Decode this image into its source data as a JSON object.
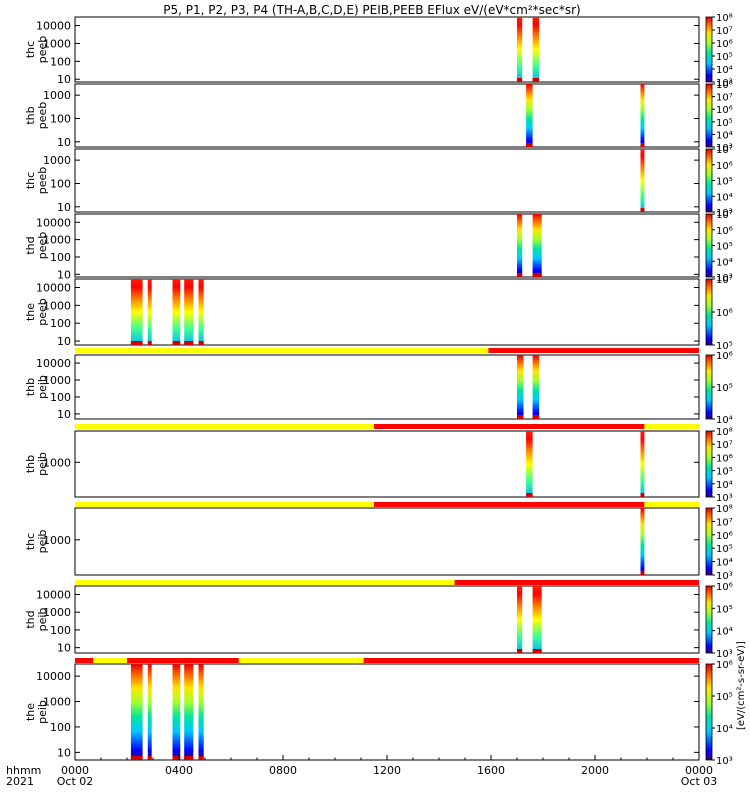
{
  "chart_data": {
    "type": "heatmap",
    "title": "P5, P1, P2, P3, P4 (TH-A,B,C,D,E) PEIB,PEEB EFlux eV/(eV*cm²*sec*sr)",
    "time_axis": {
      "row_label_1": "hhmm",
      "row_label_2": "2021",
      "range_hours": [
        0,
        24
      ],
      "ticks": [
        {
          "hour": 0,
          "label": "0000",
          "date": "Oct 02"
        },
        {
          "hour": 4,
          "label": "0400",
          "date": ""
        },
        {
          "hour": 8,
          "label": "0800",
          "date": ""
        },
        {
          "hour": 12,
          "label": "1200",
          "date": ""
        },
        {
          "hour": 16,
          "label": "1600",
          "date": ""
        },
        {
          "hour": 20,
          "label": "2000",
          "date": ""
        },
        {
          "hour": 24,
          "label": "0000",
          "date": "Oct 03"
        }
      ]
    },
    "colorbar_label": "[eV/(cm²-s-sr-eV)]",
    "colors": {
      "mode_yellow": "#ffff00",
      "mode_red": "#ff0000"
    },
    "panels": [
      {
        "probe": "thc",
        "product": "peeb",
        "ylim": [
          7,
          30000
        ],
        "yticks": [
          "10",
          "100",
          "1000",
          "10000"
        ],
        "cbar": {
          "exp_min": 3,
          "exp_max": 8,
          "ticks": [
            "10³",
            "10⁴",
            "10⁵",
            "10⁶",
            "10⁷",
            "10⁸"
          ]
        },
        "mode_bar": [],
        "bursts": [
          {
            "start": 17.0,
            "end": 17.2,
            "ylow": 7,
            "yhigh": 30000
          },
          {
            "start": 17.6,
            "end": 17.85,
            "ylow": 7,
            "yhigh": 30000
          }
        ]
      },
      {
        "probe": "thb",
        "product": "peeb",
        "ylim": [
          6,
          3000
        ],
        "yticks": [
          "10",
          "100",
          "1000"
        ],
        "cbar": {
          "exp_min": 3,
          "exp_max": 8,
          "ticks": [
            "10³",
            "10⁴",
            "10⁵",
            "10⁶",
            "10⁷",
            "10⁸"
          ]
        },
        "mode_bar": [],
        "bursts": [
          {
            "start": 17.35,
            "end": 17.6,
            "ylow": 6,
            "yhigh": 3000
          },
          {
            "start": 21.75,
            "end": 21.9,
            "ylow": 6,
            "yhigh": 3000
          }
        ]
      },
      {
        "probe": "thc",
        "product": "peeb",
        "ylim": [
          6,
          3000
        ],
        "yticks": [
          "10",
          "100",
          "1000"
        ],
        "cbar": {
          "exp_min": 3,
          "exp_max": 7,
          "ticks": [
            "10³",
            "10⁴",
            "10⁵",
            "10⁶",
            "10⁷"
          ]
        },
        "mode_bar": [],
        "bursts": [
          {
            "start": 21.75,
            "end": 21.9,
            "ylow": 6,
            "yhigh": 3000
          }
        ]
      },
      {
        "probe": "thd",
        "product": "peeb",
        "ylim": [
          7,
          30000
        ],
        "yticks": [
          "10",
          "100",
          "1000",
          "10000"
        ],
        "cbar": {
          "exp_min": 3,
          "exp_max": 7,
          "ticks": [
            "10³",
            "10⁴",
            "10⁵",
            "10⁶",
            "10⁷"
          ]
        },
        "mode_bar": [],
        "bursts": [
          {
            "start": 17.0,
            "end": 17.2,
            "ylow": 7,
            "yhigh": 30000
          },
          {
            "start": 17.6,
            "end": 17.95,
            "ylow": 7,
            "yhigh": 30000
          }
        ]
      },
      {
        "probe": "the",
        "product": "peeb",
        "ylim": [
          6,
          30000
        ],
        "yticks": [
          "10",
          "100",
          "1000",
          "10000"
        ],
        "cbar": {
          "exp_min": 5,
          "exp_max": 7,
          "ticks": [
            "10⁵",
            "10⁶",
            "10⁷"
          ]
        },
        "mode_bar": [],
        "bursts": [
          {
            "start": 2.15,
            "end": 2.6,
            "ylow": 6,
            "yhigh": 30000
          },
          {
            "start": 2.8,
            "end": 2.95,
            "ylow": 6,
            "yhigh": 30000
          },
          {
            "start": 3.75,
            "end": 4.05,
            "ylow": 6,
            "yhigh": 30000
          },
          {
            "start": 4.2,
            "end": 4.55,
            "ylow": 6,
            "yhigh": 30000
          },
          {
            "start": 4.75,
            "end": 4.95,
            "ylow": 6,
            "yhigh": 30000
          }
        ]
      },
      {
        "probe": "thb",
        "product": "peib",
        "ylim": [
          5,
          30000
        ],
        "yticks": [
          "10",
          "100",
          "1000",
          "10000"
        ],
        "cbar": {
          "exp_min": 4,
          "exp_max": 6,
          "ticks": [
            "10⁴",
            "10⁵",
            "10⁶"
          ]
        },
        "mode_bar": [
          {
            "start": 0,
            "end": 15.9,
            "mode": "yellow"
          },
          {
            "start": 15.9,
            "end": 24,
            "mode": "red"
          }
        ],
        "bursts": [
          {
            "start": 17.0,
            "end": 17.25,
            "ylow": 5,
            "yhigh": 30000
          },
          {
            "start": 17.6,
            "end": 17.85,
            "ylow": 5,
            "yhigh": 30000
          }
        ]
      },
      {
        "probe": "thb",
        "product": "peib",
        "ylim": [
          100,
          8000
        ],
        "yticks": [
          "1000"
        ],
        "cbar": {
          "exp_min": 3,
          "exp_max": 8,
          "ticks": [
            "10³",
            "10⁴",
            "10⁵",
            "10⁶",
            "10⁷",
            "10⁸"
          ]
        },
        "mode_bar": [
          {
            "start": 0,
            "end": 11.5,
            "mode": "yellow"
          },
          {
            "start": 11.5,
            "end": 21.9,
            "mode": "red"
          },
          {
            "start": 21.9,
            "end": 24,
            "mode": "yellow"
          }
        ],
        "bursts": [
          {
            "start": 17.35,
            "end": 17.6,
            "ylow": 100,
            "yhigh": 8000
          },
          {
            "start": 21.75,
            "end": 21.9,
            "ylow": 100,
            "yhigh": 8000
          }
        ]
      },
      {
        "probe": "thc",
        "product": "peib",
        "ylim": [
          100,
          8000
        ],
        "yticks": [
          "1000"
        ],
        "cbar": {
          "exp_min": 3,
          "exp_max": 8,
          "ticks": [
            "10³",
            "10⁴",
            "10⁵",
            "10⁶",
            "10⁷",
            "10⁸"
          ]
        },
        "mode_bar": [
          {
            "start": 0,
            "end": 11.5,
            "mode": "yellow"
          },
          {
            "start": 11.5,
            "end": 21.9,
            "mode": "red"
          },
          {
            "start": 21.9,
            "end": 24,
            "mode": "yellow"
          }
        ],
        "bursts": [
          {
            "start": 21.75,
            "end": 21.9,
            "ylow": 100,
            "yhigh": 8000
          }
        ]
      },
      {
        "probe": "thd",
        "product": "peib",
        "ylim": [
          5,
          30000
        ],
        "yticks": [
          "10",
          "100",
          "1000",
          "10000"
        ],
        "cbar": {
          "exp_min": 3,
          "exp_max": 6,
          "ticks": [
            "10³",
            "10⁴",
            "10⁵",
            "10⁶"
          ]
        },
        "mode_bar": [
          {
            "start": 0,
            "end": 14.6,
            "mode": "yellow"
          },
          {
            "start": 14.6,
            "end": 24,
            "mode": "red"
          }
        ],
        "bursts": [
          {
            "start": 17.0,
            "end": 17.2,
            "ylow": 5,
            "yhigh": 30000
          },
          {
            "start": 17.6,
            "end": 17.95,
            "ylow": 5,
            "yhigh": 30000
          }
        ]
      },
      {
        "probe": "the",
        "product": "peib",
        "ylim": [
          5,
          30000
        ],
        "yticks": [
          "10",
          "100",
          "1000",
          "10000"
        ],
        "cbar": {
          "exp_min": 3,
          "exp_max": 6,
          "ticks": [
            "10³",
            "10⁴",
            "10⁵",
            "10⁶"
          ]
        },
        "mode_bar": [
          {
            "start": 0,
            "end": 0.7,
            "mode": "red"
          },
          {
            "start": 0.7,
            "end": 2.0,
            "mode": "yellow"
          },
          {
            "start": 2.0,
            "end": 6.3,
            "mode": "red"
          },
          {
            "start": 6.3,
            "end": 11.1,
            "mode": "yellow"
          },
          {
            "start": 11.1,
            "end": 24,
            "mode": "red"
          }
        ],
        "bursts": [
          {
            "start": 2.15,
            "end": 2.6,
            "ylow": 5,
            "yhigh": 30000
          },
          {
            "start": 2.8,
            "end": 2.95,
            "ylow": 5,
            "yhigh": 30000
          },
          {
            "start": 3.75,
            "end": 4.05,
            "ylow": 5,
            "yhigh": 30000
          },
          {
            "start": 4.2,
            "end": 4.55,
            "ylow": 5,
            "yhigh": 30000
          },
          {
            "start": 4.75,
            "end": 4.95,
            "ylow": 5,
            "yhigh": 30000
          }
        ]
      }
    ]
  }
}
